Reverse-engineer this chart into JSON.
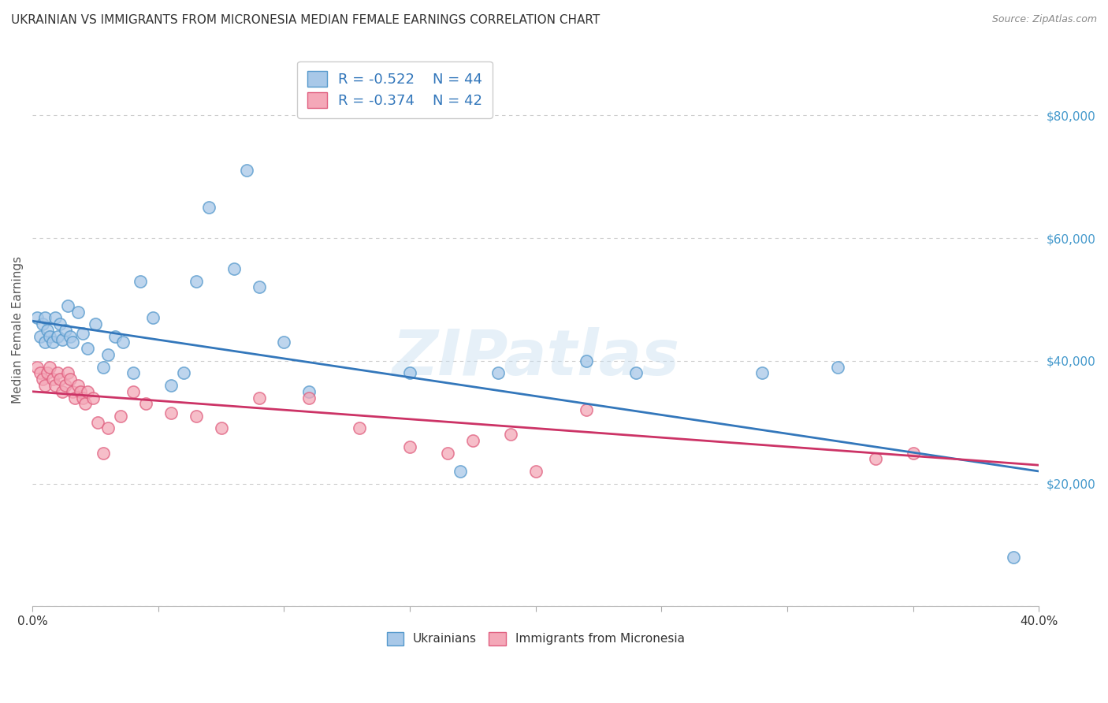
{
  "title": "UKRAINIAN VS IMMIGRANTS FROM MICRONESIA MEDIAN FEMALE EARNINGS CORRELATION CHART",
  "source": "Source: ZipAtlas.com",
  "ylabel": "Median Female Earnings",
  "xlim": [
    0.0,
    0.4
  ],
  "ylim": [
    0,
    90000
  ],
  "xticks": [
    0.0,
    0.05,
    0.1,
    0.15,
    0.2,
    0.25,
    0.3,
    0.35,
    0.4
  ],
  "xticklabels": [
    "0.0%",
    "",
    "",
    "",
    "",
    "",
    "",
    "",
    "40.0%"
  ],
  "yticks": [
    0,
    20000,
    40000,
    60000,
    80000
  ],
  "yticklabels": [
    "",
    "$20,000",
    "$40,000",
    "$60,000",
    "$80,000"
  ],
  "legend_blue_r": "R = -0.522",
  "legend_blue_n": "N = 44",
  "legend_pink_r": "R = -0.374",
  "legend_pink_n": "N = 42",
  "blue_color": "#a8c8e8",
  "pink_color": "#f4a8b8",
  "blue_edge_color": "#5599cc",
  "pink_edge_color": "#e06080",
  "blue_line_color": "#3377bb",
  "pink_line_color": "#cc3366",
  "watermark": "ZIPatlas",
  "blue_scatter_x": [
    0.002,
    0.003,
    0.004,
    0.005,
    0.005,
    0.006,
    0.007,
    0.008,
    0.009,
    0.01,
    0.011,
    0.012,
    0.013,
    0.014,
    0.015,
    0.016,
    0.018,
    0.02,
    0.022,
    0.025,
    0.028,
    0.03,
    0.033,
    0.036,
    0.04,
    0.043,
    0.048,
    0.055,
    0.06,
    0.065,
    0.07,
    0.08,
    0.085,
    0.09,
    0.1,
    0.11,
    0.15,
    0.17,
    0.185,
    0.22,
    0.24,
    0.29,
    0.32,
    0.39
  ],
  "blue_scatter_y": [
    47000,
    44000,
    46000,
    47000,
    43000,
    45000,
    44000,
    43000,
    47000,
    44000,
    46000,
    43500,
    45000,
    49000,
    44000,
    43000,
    48000,
    44500,
    42000,
    46000,
    39000,
    41000,
    44000,
    43000,
    38000,
    53000,
    47000,
    36000,
    38000,
    53000,
    65000,
    55000,
    71000,
    52000,
    43000,
    35000,
    38000,
    22000,
    38000,
    40000,
    38000,
    38000,
    39000,
    8000
  ],
  "pink_scatter_x": [
    0.002,
    0.003,
    0.004,
    0.005,
    0.006,
    0.007,
    0.008,
    0.009,
    0.01,
    0.011,
    0.012,
    0.013,
    0.014,
    0.015,
    0.016,
    0.017,
    0.018,
    0.019,
    0.02,
    0.021,
    0.022,
    0.024,
    0.026,
    0.028,
    0.03,
    0.035,
    0.04,
    0.045,
    0.055,
    0.065,
    0.075,
    0.09,
    0.11,
    0.13,
    0.15,
    0.165,
    0.175,
    0.19,
    0.2,
    0.22,
    0.335,
    0.35
  ],
  "pink_scatter_y": [
    39000,
    38000,
    37000,
    36000,
    38000,
    39000,
    37000,
    36000,
    38000,
    37000,
    35000,
    36000,
    38000,
    37000,
    35000,
    34000,
    36000,
    35000,
    34000,
    33000,
    35000,
    34000,
    30000,
    25000,
    29000,
    31000,
    35000,
    33000,
    31500,
    31000,
    29000,
    34000,
    34000,
    29000,
    26000,
    25000,
    27000,
    28000,
    22000,
    32000,
    24000,
    25000
  ],
  "blue_trend_x": [
    0.0,
    0.4
  ],
  "blue_trend_y": [
    46500,
    22000
  ],
  "pink_trend_x": [
    0.0,
    0.4
  ],
  "pink_trend_y": [
    35000,
    23000
  ],
  "background_color": "#ffffff",
  "grid_color": "#cccccc",
  "title_color": "#333333",
  "axis_label_color": "#555555",
  "ytick_color": "#4499cc",
  "source_color": "#888888"
}
